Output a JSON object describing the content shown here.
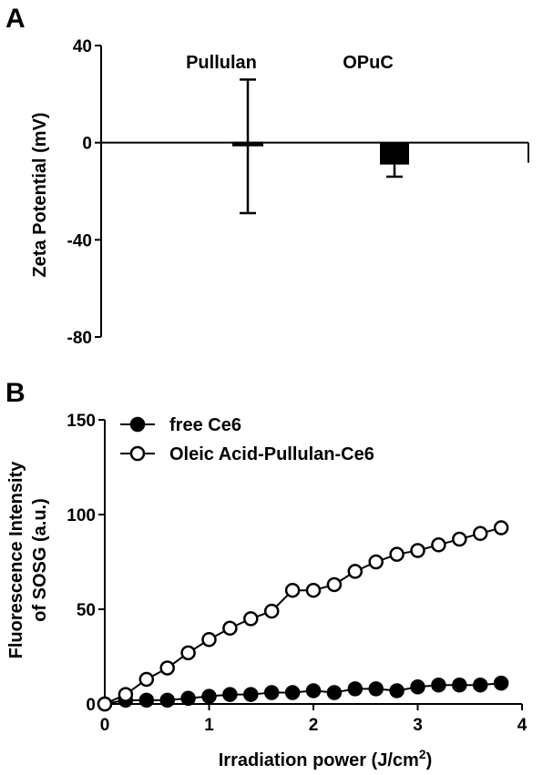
{
  "panels": {
    "a": "A",
    "b": "B"
  },
  "chart_data": [
    {
      "type": "bar",
      "ylabel": "Zeta Potential (mV)",
      "ylim": [
        -80,
        40
      ],
      "yticks": [
        "40",
        "0",
        "-40",
        "-80"
      ],
      "categories": [
        "Pullulan",
        "OPuC"
      ],
      "values": [
        -1.5,
        -9
      ],
      "error_upper": [
        26,
        -14
      ],
      "error_lower": [
        -29,
        -14
      ]
    },
    {
      "type": "line",
      "xlabel": "Irradiation power (J/cm",
      "xlabel_sup": "2",
      "xlabel_end": ")",
      "ylabel_line1": "Fluorescence Intensity",
      "ylabel_line2": "of SOSG (a.u.)",
      "xlim": [
        0,
        4
      ],
      "ylim": [
        0,
        150
      ],
      "xticks": [
        "0",
        "1",
        "2",
        "3",
        "4"
      ],
      "yticks": [
        "150",
        "100",
        "50",
        "0"
      ],
      "x": [
        0,
        0.2,
        0.4,
        0.6,
        0.8,
        1.0,
        1.2,
        1.4,
        1.6,
        1.8,
        2.0,
        2.2,
        2.4,
        2.6,
        2.8,
        3.0,
        3.2,
        3.4,
        3.6,
        3.8
      ],
      "series": [
        {
          "name": "free Ce6",
          "marker": "filled",
          "values": [
            0,
            2,
            2,
            2,
            3,
            4,
            5,
            5,
            6,
            6,
            7,
            6,
            8,
            8,
            7,
            9,
            10,
            10,
            10,
            11
          ]
        },
        {
          "name": "Oleic Acid-Pullulan-Ce6",
          "marker": "open",
          "values": [
            0,
            5,
            13,
            19,
            27,
            34,
            40,
            45,
            49,
            60,
            60,
            63,
            70,
            75,
            79,
            81,
            84,
            87,
            90,
            93
          ]
        }
      ]
    }
  ]
}
